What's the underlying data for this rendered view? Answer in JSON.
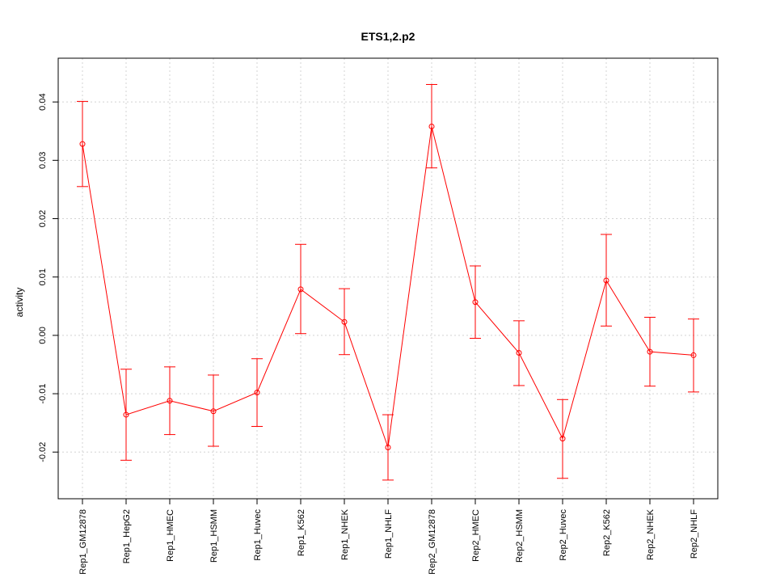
{
  "chart_data": {
    "type": "line",
    "title": "ETS1,2.p2",
    "ylabel": "activity",
    "xlabel": "",
    "ylim": [
      -0.028,
      0.0475
    ],
    "yticks": [
      -0.02,
      -0.01,
      0.0,
      0.01,
      0.02,
      0.03,
      0.04
    ],
    "ytick_labels": [
      "-0.02",
      "-0.01",
      "0.00",
      "0.01",
      "0.02",
      "0.03",
      "0.04"
    ],
    "grid": true,
    "categories": [
      "Rep1_GM12878",
      "Rep1_HepG2",
      "Rep1_HMEC",
      "Rep1_HSMM",
      "Rep1_Huvec",
      "Rep1_K562",
      "Rep1_NHEK",
      "Rep1_NHLF",
      "Rep2_GM12878",
      "Rep2_HMEC",
      "Rep2_HSMM",
      "Rep2_Huvec",
      "Rep2_K562",
      "Rep2_NHEK",
      "Rep2_NHLF"
    ],
    "values": [
      0.0328,
      -0.0136,
      -0.0112,
      -0.013,
      -0.0098,
      0.0079,
      0.0023,
      -0.0192,
      0.0358,
      0.0057,
      -0.003,
      -0.0177,
      0.0094,
      -0.0028,
      -0.0034
    ],
    "error_low": [
      0.0255,
      -0.0214,
      -0.017,
      -0.019,
      -0.0156,
      0.0003,
      -0.0033,
      -0.0248,
      0.0287,
      -0.0005,
      -0.0086,
      -0.0245,
      0.0016,
      -0.0087,
      -0.0097
    ],
    "error_high": [
      0.0401,
      -0.0058,
      -0.0054,
      -0.0068,
      -0.004,
      0.0156,
      0.008,
      -0.0136,
      0.043,
      0.0119,
      0.0025,
      -0.011,
      0.0173,
      0.0031,
      0.0028
    ],
    "color": "#ff0000"
  }
}
